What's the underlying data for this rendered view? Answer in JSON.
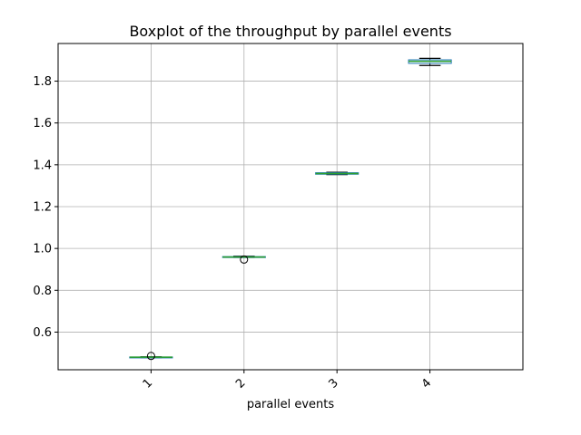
{
  "chart_data": {
    "type": "box",
    "title": "Boxplot of the throughput by parallel events",
    "xlabel": "parallel events",
    "ylabel": "",
    "categories": [
      "1",
      "2",
      "3",
      "4"
    ],
    "ylim": [
      0.42,
      1.98
    ],
    "yticks": [
      0.6,
      0.8,
      1.0,
      1.2,
      1.4,
      1.6,
      1.8
    ],
    "ytick_labels": [
      "0.6",
      "0.8",
      "1.0",
      "1.2",
      "1.4",
      "1.6",
      "1.8"
    ],
    "grid": true,
    "boxes": [
      {
        "category": "1",
        "whisker_low": 0.478,
        "q1": 0.479,
        "median": 0.48,
        "q3": 0.481,
        "whisker_high": 0.482,
        "outliers": [
          0.486
        ]
      },
      {
        "category": "2",
        "whisker_low": 0.957,
        "q1": 0.958,
        "median": 0.959,
        "q3": 0.961,
        "whisker_high": 0.963,
        "outliers": [
          0.947
        ]
      },
      {
        "category": "3",
        "whisker_low": 1.353,
        "q1": 1.355,
        "median": 1.358,
        "q3": 1.362,
        "whisker_high": 1.364,
        "outliers": []
      },
      {
        "category": "4",
        "whisker_low": 1.875,
        "q1": 1.885,
        "median": 1.895,
        "q3": 1.902,
        "whisker_high": 1.909,
        "outliers": []
      }
    ],
    "colors": {
      "box": "#1f77b4",
      "median": "#2ca02c",
      "whisker": "#000000",
      "grid": "#b0b0b0"
    }
  }
}
